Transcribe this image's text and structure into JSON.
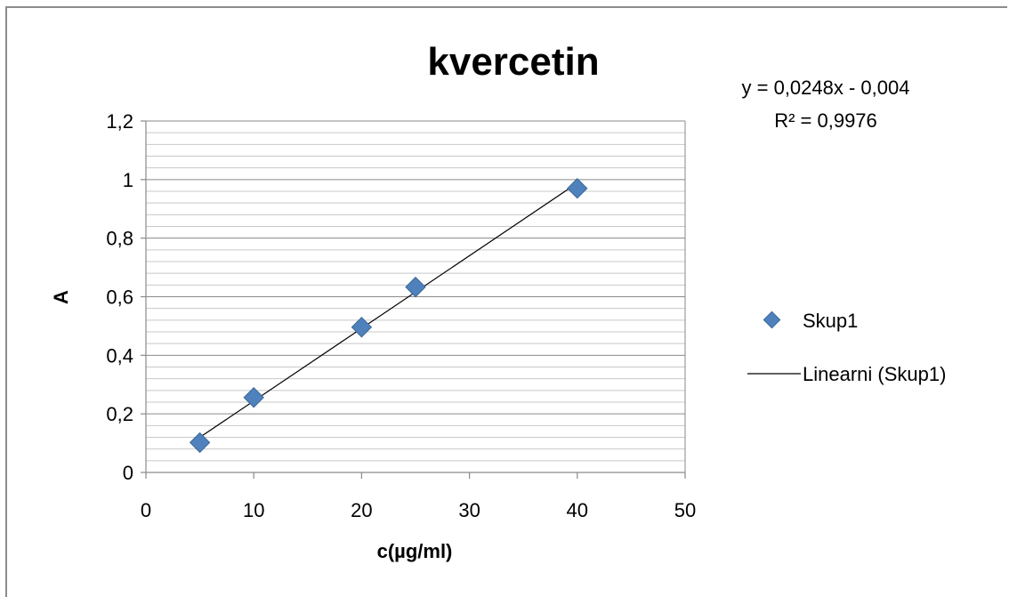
{
  "chart_data": {
    "type": "scatter",
    "title": "kvercetin",
    "xlabel": "c(µg/ml)",
    "ylabel": "A",
    "xlim": [
      0,
      50
    ],
    "ylim": [
      0,
      1.2
    ],
    "x_ticks": [
      "0",
      "10",
      "20",
      "30",
      "40",
      "50"
    ],
    "y_ticks": [
      "0",
      "0,2",
      "0,4",
      "0,6",
      "0,8",
      "1",
      "1,2"
    ],
    "grid": true,
    "series": [
      {
        "name": "Skup1",
        "x": [
          5,
          10,
          20,
          25,
          40
        ],
        "y": [
          0.102,
          0.256,
          0.496,
          0.633,
          0.97
        ],
        "marker": "diamond",
        "color": "#4f81bd"
      }
    ],
    "trendline": {
      "name": "Linearni (Skup1)",
      "slope": 0.0248,
      "intercept": -0.004,
      "x_range": [
        5,
        40
      ],
      "color": "#000000",
      "equation": "y = 0,0248x - 0,004",
      "r_squared": "R² = 0,9976"
    },
    "legend_position": "right"
  }
}
